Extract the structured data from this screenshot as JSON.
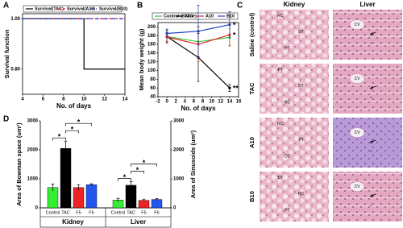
{
  "panels": [
    "A",
    "B",
    "C",
    "D"
  ],
  "chart_data": [
    {
      "type": "line",
      "legend": "top",
      "xlabel": "No. of days",
      "ylabel": "Survival function",
      "xlim": [
        4,
        14
      ],
      "xticks": [
        4,
        6,
        8,
        10,
        12,
        14
      ],
      "ylim": [
        0.7,
        1.02
      ],
      "yticks": [
        {
          "value": 0.8,
          "label": "0.80"
        },
        {
          "value": 1,
          "label": "1.00"
        }
      ],
      "series": [
        {
          "name": "Survival(TAC)",
          "color": "#000000",
          "style": "solid",
          "x": [
            4,
            10,
            10,
            14
          ],
          "values": [
            1,
            1,
            0.8,
            0.8
          ]
        },
        {
          "name": "Survival(A10)",
          "color": "#e8202a",
          "style": "dashed",
          "x": [
            4,
            14
          ],
          "values": [
            1,
            1
          ]
        },
        {
          "name": "Survival(B10)",
          "color": "#1f3fbf",
          "style": "dashdot",
          "x": [
            4,
            14
          ],
          "values": [
            1,
            1
          ]
        }
      ]
    },
    {
      "type": "line",
      "legend": "top",
      "xlabel": "No. of days",
      "ylabel": "Mean body weight (g)",
      "xlim": [
        -2,
        16
      ],
      "xticks": [
        -2,
        0,
        2,
        4,
        6,
        8,
        10,
        12,
        14,
        16
      ],
      "ylim": [
        40,
        210
      ],
      "yticks": [
        40,
        60,
        80,
        100,
        120,
        140,
        160,
        180,
        200
      ],
      "x": [
        0,
        7,
        14
      ],
      "series": [
        {
          "name": "Control (Saline)",
          "color": "#3cc83c",
          "style": "solid",
          "values": [
            178,
            166,
            176
          ],
          "errors": [
            12,
            35,
            20
          ]
        },
        {
          "name": "TAC",
          "color": "#000000",
          "style": "solid",
          "values": [
            178,
            130,
            60
          ],
          "errors": [
            15,
            55,
            8
          ]
        },
        {
          "name": "A10",
          "color": "#e8202a",
          "style": "solid",
          "values": [
            177,
            160,
            182
          ],
          "errors": [
            10,
            40,
            25
          ]
        },
        {
          "name": "B10",
          "color": "#1f3fbf",
          "style": "solid",
          "values": [
            185,
            190,
            205
          ],
          "errors": [
            10,
            60,
            30
          ]
        }
      ],
      "annotations": [
        {
          "text": "*",
          "x": 14,
          "y": 205
        },
        {
          "text": "*",
          "x": 14,
          "y": 182
        },
        {
          "text": "**",
          "x": 14,
          "y": 60
        }
      ]
    },
    {
      "type": "grouped-bar",
      "ylabel": "Area of Bowman space (um²)",
      "y2label": "Area of Sinusoids (um²)",
      "ylim": [
        0,
        3000
      ],
      "yticks": [
        0,
        1000,
        2000,
        3000
      ],
      "y2lim": [
        0,
        3000
      ],
      "y2ticks": [
        0,
        1000,
        2000,
        3000
      ],
      "categories": [
        "Control",
        "TAC",
        "F5",
        "F6"
      ],
      "colors": [
        "#33ee33",
        "#000000",
        "#ee2222",
        "#2255ee"
      ],
      "groups": [
        {
          "name": "Kidney",
          "axis": "y",
          "values": [
            700,
            2050,
            700,
            800
          ],
          "errors": [
            120,
            250,
            100,
            30
          ]
        },
        {
          "name": "Liver",
          "axis": "y2",
          "values": [
            270,
            780,
            260,
            290
          ],
          "errors": [
            60,
            120,
            40,
            30
          ]
        }
      ],
      "significance": [
        {
          "group": "Kidney",
          "from": "Control",
          "to": "TAC",
          "text": "*"
        },
        {
          "group": "Kidney",
          "from": "TAC",
          "to": "F5",
          "text": "*"
        },
        {
          "group": "Kidney",
          "from": "TAC",
          "to": "F6",
          "text": "*"
        },
        {
          "group": "Liver",
          "from": "Control",
          "to": "TAC",
          "text": "*"
        },
        {
          "group": "Liver",
          "from": "TAC",
          "to": "F5",
          "text": "*"
        },
        {
          "group": "Liver",
          "from": "TAC",
          "to": "F6",
          "text": "*"
        }
      ]
    }
  ],
  "images": {
    "columns": [
      "Kidney",
      "Liver"
    ],
    "rows": [
      {
        "label": "Saline (control)",
        "kidney": [
          "RC",
          "DT",
          "PT"
        ],
        "liver": [
          "CV",
          "*"
        ]
      },
      {
        "label": "TAC",
        "kidney": [
          "PT",
          "DT",
          "RC"
        ],
        "liver": [
          "CV",
          "*"
        ]
      },
      {
        "label": "A10",
        "kidney": [
          "RC",
          "PT",
          "DT"
        ],
        "liver": [
          "CV",
          "*"
        ]
      },
      {
        "label": "B10",
        "kidney": [
          "DT",
          "RC",
          "PT"
        ],
        "liver": [
          "CV",
          "*"
        ]
      }
    ]
  }
}
